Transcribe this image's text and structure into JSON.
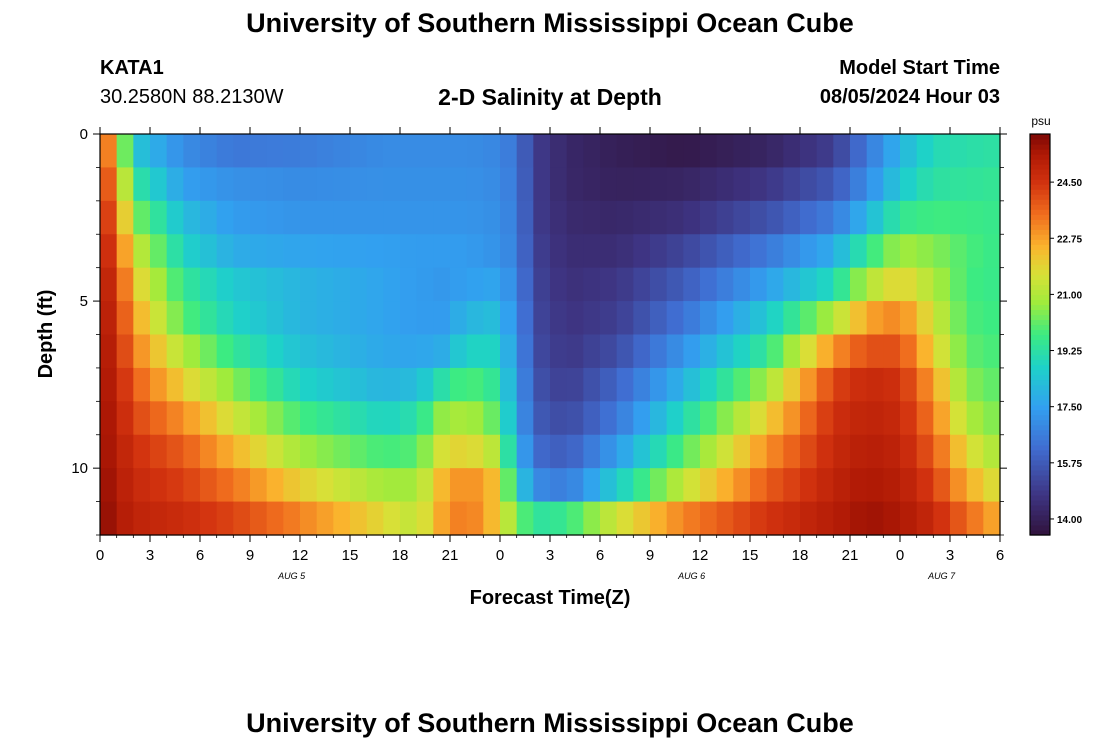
{
  "header": {
    "title": "University of Southern Mississippi Ocean Cube",
    "station_id": "KATA1",
    "coordinates": "30.2580N  88.2130W",
    "subtitle": "2-D Salinity at Depth",
    "model_start_label": "Model Start Time",
    "model_start_value": "08/05/2024 Hour 03"
  },
  "footer": {
    "title": "University of Southern Mississippi Ocean Cube"
  },
  "chart_data": {
    "type": "heatmap",
    "title": "2-D Salinity at Depth",
    "xlabel": "Forecast Time(Z)",
    "ylabel": "Depth (ft)",
    "x_range_hours": [
      0,
      54
    ],
    "y_range_ft": [
      0,
      12
    ],
    "x_tick_labels": [
      "0",
      "3",
      "6",
      "9",
      "12",
      "15",
      "18",
      "21",
      "0",
      "3",
      "6",
      "9",
      "12",
      "15",
      "18",
      "21",
      "0",
      "3",
      "6"
    ],
    "y_ticks": [
      0,
      5,
      10
    ],
    "y_tick_labels": [
      "0",
      "5",
      "10"
    ],
    "date_labels": [
      {
        "text": "AUG 5",
        "hour": 11.5
      },
      {
        "text": "AUG 6",
        "hour": 35.5
      },
      {
        "text": "AUG 7",
        "hour": 50.5
      }
    ],
    "colorbar": {
      "unit": "psu",
      "min": 13.5,
      "max": 26.0,
      "tick_labels": [
        "24.50",
        "22.75",
        "21.00",
        "19.25",
        "17.50",
        "15.75",
        "14.00"
      ],
      "tick_values": [
        24.5,
        22.75,
        21.0,
        19.25,
        17.5,
        15.75,
        14.0
      ]
    },
    "depth_levels_ft": [
      0.5,
      1.5,
      2.5,
      3.5,
      4.5,
      5.5,
      6.5,
      7.5,
      8.5,
      9.5,
      10.5,
      11.5
    ],
    "key_hours": [
      0,
      1,
      2,
      5,
      8,
      12,
      17,
      19,
      20.5,
      22,
      23.5,
      25,
      26,
      28,
      31,
      35,
      40,
      44,
      46,
      48,
      50,
      52,
      54
    ],
    "key_values_psu": [
      [
        24.5,
        22.0,
        18.5,
        17.0,
        16.5,
        16.6,
        17.0,
        17.0,
        17.0,
        17.0,
        16.9,
        16.5,
        15.0,
        14.3,
        14.0,
        13.8,
        14.2,
        15.0,
        16.5,
        18.0,
        19.0,
        19.2,
        19.3
      ],
      [
        24.8,
        22.8,
        19.5,
        17.5,
        17.1,
        17.0,
        17.1,
        17.1,
        17.1,
        17.1,
        17.0,
        16.6,
        15.0,
        14.3,
        14.1,
        14.2,
        14.8,
        15.7,
        17.0,
        18.5,
        19.3,
        19.4,
        19.5
      ],
      [
        25.0,
        23.5,
        20.5,
        18.2,
        17.4,
        17.2,
        17.2,
        17.2,
        17.2,
        17.2,
        17.1,
        16.7,
        15.0,
        14.4,
        14.3,
        14.6,
        15.5,
        16.6,
        18.0,
        19.5,
        19.8,
        19.7,
        19.6
      ],
      [
        25.2,
        24.0,
        21.5,
        18.8,
        17.8,
        17.6,
        17.5,
        17.4,
        17.4,
        17.4,
        17.2,
        16.8,
        15.1,
        14.5,
        14.5,
        15.2,
        16.5,
        17.8,
        19.5,
        20.8,
        20.5,
        19.9,
        19.6
      ],
      [
        25.4,
        24.4,
        22.2,
        19.5,
        18.5,
        18.0,
        17.6,
        17.4,
        17.3,
        17.5,
        17.6,
        17.0,
        15.2,
        14.6,
        14.8,
        15.8,
        17.5,
        19.0,
        21.0,
        22.0,
        21.0,
        19.8,
        19.6
      ],
      [
        25.5,
        24.6,
        22.8,
        20.0,
        18.8,
        18.0,
        17.6,
        17.4,
        17.4,
        18.0,
        18.2,
        17.2,
        15.3,
        14.7,
        15.0,
        16.4,
        18.5,
        21.0,
        22.7,
        23.2,
        21.5,
        19.9,
        19.7
      ],
      [
        25.6,
        24.8,
        23.3,
        21.0,
        19.5,
        18.3,
        17.7,
        17.6,
        17.8,
        18.8,
        18.8,
        17.4,
        15.4,
        14.8,
        15.4,
        17.2,
        19.5,
        23.0,
        24.0,
        24.0,
        22.0,
        20.1,
        19.8
      ],
      [
        25.6,
        25.0,
        23.8,
        22.0,
        20.5,
        18.8,
        18.0,
        18.2,
        19.2,
        20.0,
        19.5,
        17.6,
        15.6,
        15.0,
        16.0,
        18.0,
        20.8,
        24.2,
        24.8,
        24.6,
        22.8,
        20.5,
        20.0
      ],
      [
        25.7,
        25.1,
        24.2,
        23.0,
        21.5,
        19.8,
        18.8,
        19.2,
        20.6,
        21.0,
        20.2,
        17.8,
        15.8,
        15.3,
        16.5,
        19.0,
        22.0,
        24.6,
        25.0,
        24.8,
        23.3,
        21.0,
        20.3
      ],
      [
        25.7,
        25.2,
        24.6,
        23.8,
        22.5,
        20.8,
        19.8,
        20.0,
        21.6,
        22.0,
        21.2,
        18.3,
        16.2,
        15.8,
        17.4,
        20.0,
        23.0,
        24.8,
        25.2,
        25.0,
        23.8,
        21.8,
        20.8
      ],
      [
        25.8,
        25.3,
        24.8,
        24.3,
        23.4,
        22.0,
        20.8,
        20.8,
        22.4,
        23.2,
        22.4,
        19.0,
        17.0,
        16.6,
        18.6,
        21.3,
        23.8,
        25.0,
        25.4,
        25.2,
        24.3,
        22.6,
        21.5
      ],
      [
        25.9,
        25.4,
        25.0,
        24.7,
        24.2,
        23.2,
        21.8,
        21.2,
        22.7,
        23.5,
        22.4,
        20.5,
        19.3,
        19.6,
        21.5,
        23.2,
        24.5,
        25.2,
        25.6,
        25.4,
        24.8,
        23.6,
        22.5
      ]
    ]
  }
}
